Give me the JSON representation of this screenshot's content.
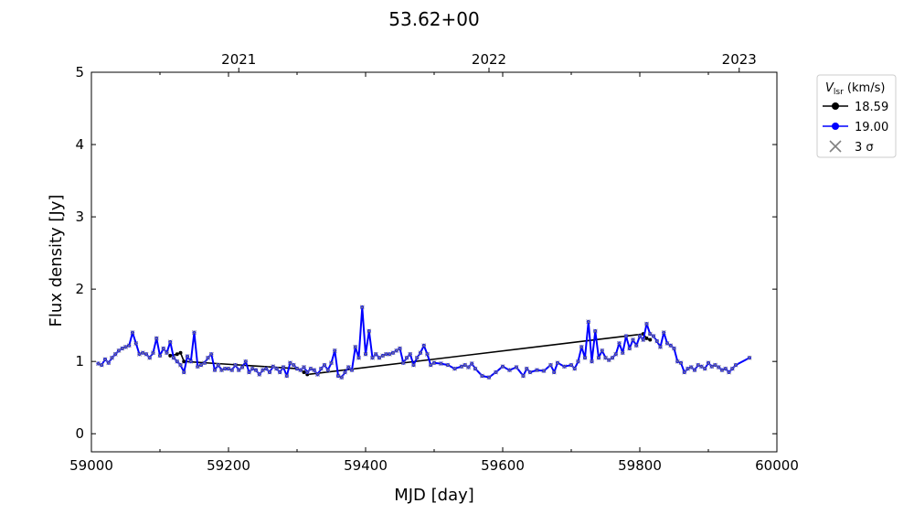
{
  "chart_data": {
    "type": "line",
    "title": "53.62+00",
    "xlabel": "MJD [day]",
    "ylabel": "Flux density [Jy]",
    "xlim": [
      59000,
      60000
    ],
    "ylim": [
      -0.25,
      5
    ],
    "x_ticks": [
      59000,
      59200,
      59400,
      59600,
      59800,
      60000
    ],
    "y_ticks": [
      0,
      1,
      2,
      3,
      4,
      5
    ],
    "top_axis": {
      "ticks": [
        {
          "mjd": 59215,
          "label": "2021"
        },
        {
          "mjd": 59580,
          "label": "2022"
        },
        {
          "mjd": 59945,
          "label": "2023"
        }
      ]
    },
    "legend": {
      "title_main": "V",
      "title_sub": "lsr",
      "title_unit": " (km/s)",
      "placement": "outside-top-right",
      "entries": [
        {
          "label": "18.59",
          "color": "#000000",
          "marker": "circle-line"
        },
        {
          "label": "19.00",
          "color": "#0000ff",
          "marker": "circle-line"
        },
        {
          "label": "3 σ",
          "color": "#808080",
          "marker": "x"
        }
      ]
    },
    "series": [
      {
        "name": "18.59",
        "color": "#000000",
        "x": [
          59115,
          59125,
          59130,
          59135,
          59300,
          59310,
          59315,
          59805,
          59810,
          59815
        ],
        "y": [
          1.08,
          1.1,
          1.12,
          1.0,
          0.9,
          0.85,
          0.82,
          1.38,
          1.32,
          1.3
        ]
      },
      {
        "name": "19.00",
        "color": "#0000ff",
        "x": [
          59010,
          59015,
          59020,
          59025,
          59030,
          59035,
          59040,
          59045,
          59050,
          59055,
          59060,
          59065,
          59070,
          59075,
          59080,
          59085,
          59090,
          59095,
          59100,
          59105,
          59110,
          59115,
          59120,
          59125,
          59130,
          59135,
          59140,
          59145,
          59150,
          59155,
          59160,
          59165,
          59170,
          59175,
          59180,
          59185,
          59190,
          59195,
          59200,
          59205,
          59210,
          59215,
          59220,
          59225,
          59230,
          59235,
          59240,
          59245,
          59250,
          59255,
          59260,
          59265,
          59270,
          59275,
          59280,
          59285,
          59290,
          59295,
          59300,
          59305,
          59310,
          59315,
          59320,
          59325,
          59330,
          59335,
          59340,
          59345,
          59350,
          59355,
          59360,
          59365,
          59370,
          59375,
          59380,
          59385,
          59390,
          59395,
          59400,
          59405,
          59410,
          59415,
          59420,
          59425,
          59430,
          59435,
          59440,
          59445,
          59450,
          59455,
          59460,
          59465,
          59470,
          59475,
          59480,
          59485,
          59490,
          59495,
          59500,
          59510,
          59520,
          59530,
          59540,
          59545,
          59550,
          59555,
          59560,
          59570,
          59580,
          59590,
          59600,
          59610,
          59620,
          59630,
          59635,
          59640,
          59650,
          59660,
          59670,
          59675,
          59680,
          59690,
          59700,
          59705,
          59710,
          59715,
          59720,
          59725,
          59730,
          59735,
          59740,
          59745,
          59750,
          59755,
          59760,
          59765,
          59770,
          59775,
          59780,
          59785,
          59790,
          59795,
          59800,
          59805,
          59810,
          59815,
          59820,
          59825,
          59830,
          59835,
          59840,
          59845,
          59850,
          59855,
          59860,
          59865,
          59870,
          59875,
          59880,
          59885,
          59890,
          59895,
          59900,
          59905,
          59910,
          59915,
          59920,
          59925,
          59930,
          59935,
          59940,
          59960
        ],
        "y": [
          0.97,
          0.95,
          1.03,
          0.98,
          1.05,
          1.1,
          1.15,
          1.18,
          1.2,
          1.22,
          1.4,
          1.25,
          1.1,
          1.12,
          1.1,
          1.05,
          1.12,
          1.32,
          1.08,
          1.18,
          1.12,
          1.27,
          1.05,
          1.0,
          0.95,
          0.85,
          1.07,
          1.0,
          1.4,
          0.93,
          0.95,
          0.98,
          1.05,
          1.1,
          0.88,
          0.95,
          0.88,
          0.9,
          0.9,
          0.88,
          0.95,
          0.88,
          0.92,
          1.0,
          0.85,
          0.9,
          0.88,
          0.82,
          0.88,
          0.9,
          0.85,
          0.93,
          0.9,
          0.85,
          0.92,
          0.8,
          0.98,
          0.95,
          0.9,
          0.88,
          0.92,
          0.85,
          0.9,
          0.88,
          0.82,
          0.9,
          0.95,
          0.88,
          0.98,
          1.15,
          0.8,
          0.78,
          0.85,
          0.92,
          0.88,
          1.2,
          1.05,
          1.75,
          1.1,
          1.42,
          1.05,
          1.1,
          1.05,
          1.08,
          1.1,
          1.1,
          1.12,
          1.15,
          1.18,
          0.98,
          1.05,
          1.1,
          0.95,
          1.05,
          1.12,
          1.22,
          1.1,
          0.95,
          0.98,
          0.97,
          0.95,
          0.9,
          0.93,
          0.95,
          0.92,
          0.97,
          0.9,
          0.8,
          0.78,
          0.85,
          0.93,
          0.88,
          0.92,
          0.8,
          0.9,
          0.85,
          0.88,
          0.87,
          0.95,
          0.85,
          0.98,
          0.93,
          0.95,
          0.9,
          1.0,
          1.2,
          1.05,
          1.55,
          1.0,
          1.42,
          1.05,
          1.15,
          1.05,
          1.02,
          1.05,
          1.1,
          1.25,
          1.12,
          1.35,
          1.18,
          1.3,
          1.22,
          1.35,
          1.3,
          1.52,
          1.38,
          1.35,
          1.28,
          1.2,
          1.4,
          1.25,
          1.22,
          1.18,
          1.0,
          0.98,
          0.85,
          0.9,
          0.92,
          0.88,
          0.95,
          0.93,
          0.9,
          0.98,
          0.93,
          0.95,
          0.92,
          0.88,
          0.9,
          0.85,
          0.9,
          0.95,
          1.05
        ]
      }
    ]
  }
}
